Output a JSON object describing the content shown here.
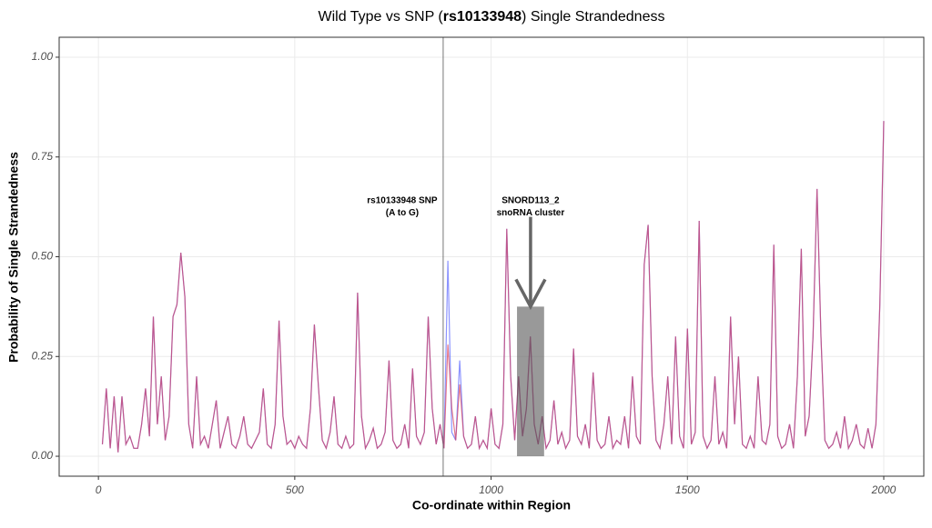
{
  "chart_data": {
    "type": "line",
    "title": [
      "Wild Type vs SNP (",
      "rs10133948",
      ") Single Strandedness"
    ],
    "xlabel": "Co-ordinate within Region",
    "ylabel": "Probability of Single Strandedness",
    "x": [
      10,
      20,
      30,
      40,
      50,
      60,
      70,
      80,
      90,
      100,
      110,
      120,
      130,
      140,
      150,
      160,
      170,
      180,
      190,
      200,
      210,
      220,
      230,
      240,
      250,
      260,
      270,
      280,
      290,
      300,
      310,
      320,
      330,
      340,
      350,
      360,
      370,
      380,
      390,
      400,
      410,
      420,
      430,
      440,
      450,
      460,
      470,
      480,
      490,
      500,
      510,
      520,
      530,
      540,
      550,
      560,
      570,
      580,
      590,
      600,
      610,
      620,
      630,
      640,
      650,
      660,
      670,
      680,
      690,
      700,
      710,
      720,
      730,
      740,
      750,
      760,
      770,
      780,
      790,
      800,
      810,
      820,
      830,
      840,
      850,
      860,
      870,
      880,
      890,
      900,
      910,
      920,
      930,
      940,
      950,
      960,
      970,
      980,
      990,
      1000,
      1010,
      1020,
      1030,
      1040,
      1050,
      1060,
      1070,
      1080,
      1090,
      1100,
      1110,
      1120,
      1130,
      1140,
      1150,
      1160,
      1170,
      1180,
      1190,
      1200,
      1210,
      1220,
      1230,
      1240,
      1250,
      1260,
      1270,
      1280,
      1290,
      1300,
      1310,
      1320,
      1330,
      1340,
      1350,
      1360,
      1370,
      1380,
      1390,
      1400,
      1410,
      1420,
      1430,
      1440,
      1450,
      1460,
      1470,
      1480,
      1490,
      1500,
      1510,
      1520,
      1530,
      1540,
      1550,
      1560,
      1570,
      1580,
      1590,
      1600,
      1610,
      1620,
      1630,
      1640,
      1650,
      1660,
      1670,
      1680,
      1690,
      1700,
      1710,
      1720,
      1730,
      1740,
      1750,
      1760,
      1770,
      1780,
      1790,
      1800,
      1810,
      1820,
      1830,
      1840,
      1850,
      1860,
      1870,
      1880,
      1890,
      1900,
      1910,
      1920,
      1930,
      1940,
      1950,
      1960,
      1970,
      1980,
      1990,
      2000
    ],
    "series": [
      {
        "color": "#4f5bff",
        "values": [
          0.03,
          0.17,
          0.02,
          0.15,
          0.01,
          0.15,
          0.03,
          0.05,
          0.02,
          0.02,
          0.08,
          0.17,
          0.05,
          0.35,
          0.08,
          0.2,
          0.04,
          0.1,
          0.35,
          0.38,
          0.51,
          0.4,
          0.08,
          0.02,
          0.2,
          0.03,
          0.05,
          0.02,
          0.08,
          0.14,
          0.02,
          0.06,
          0.1,
          0.03,
          0.02,
          0.05,
          0.1,
          0.03,
          0.02,
          0.04,
          0.06,
          0.17,
          0.03,
          0.02,
          0.08,
          0.34,
          0.1,
          0.03,
          0.04,
          0.02,
          0.05,
          0.03,
          0.02,
          0.12,
          0.33,
          0.18,
          0.04,
          0.02,
          0.06,
          0.15,
          0.03,
          0.02,
          0.05,
          0.02,
          0.03,
          0.41,
          0.1,
          0.02,
          0.04,
          0.07,
          0.02,
          0.03,
          0.06,
          0.24,
          0.04,
          0.02,
          0.03,
          0.08,
          0.02,
          0.22,
          0.05,
          0.03,
          0.06,
          0.35,
          0.12,
          0.03,
          0.08,
          0.02,
          0.49,
          0.06,
          0.04,
          0.24,
          0.05,
          0.02,
          0.03,
          0.1,
          0.02,
          0.04,
          0.02,
          0.12,
          0.03,
          0.02,
          0.08,
          0.57,
          0.2,
          0.04,
          0.2,
          0.05,
          0.12,
          0.3,
          0.08,
          0.03,
          0.1,
          0.02,
          0.04,
          0.14,
          0.03,
          0.06,
          0.02,
          0.04,
          0.27,
          0.05,
          0.03,
          0.08,
          0.02,
          0.21,
          0.04,
          0.02,
          0.03,
          0.1,
          0.02,
          0.04,
          0.03,
          0.1,
          0.02,
          0.2,
          0.05,
          0.03,
          0.48,
          0.58,
          0.2,
          0.04,
          0.02,
          0.08,
          0.2,
          0.03,
          0.3,
          0.05,
          0.02,
          0.32,
          0.03,
          0.06,
          0.59,
          0.05,
          0.02,
          0.04,
          0.2,
          0.03,
          0.06,
          0.02,
          0.35,
          0.08,
          0.25,
          0.03,
          0.02,
          0.05,
          0.02,
          0.2,
          0.04,
          0.03,
          0.08,
          0.53,
          0.05,
          0.02,
          0.03,
          0.08,
          0.02,
          0.2,
          0.52,
          0.05,
          0.1,
          0.3,
          0.67,
          0.3,
          0.04,
          0.02,
          0.03,
          0.06,
          0.02,
          0.1,
          0.02,
          0.04,
          0.08,
          0.03,
          0.02,
          0.07,
          0.02,
          0.08,
          0.38,
          0.84
        ]
      },
      {
        "color": "#d8344f",
        "values": [
          0.03,
          0.17,
          0.02,
          0.15,
          0.01,
          0.15,
          0.03,
          0.05,
          0.02,
          0.02,
          0.08,
          0.17,
          0.05,
          0.35,
          0.08,
          0.2,
          0.04,
          0.1,
          0.35,
          0.38,
          0.51,
          0.4,
          0.08,
          0.02,
          0.2,
          0.03,
          0.05,
          0.02,
          0.08,
          0.14,
          0.02,
          0.06,
          0.1,
          0.03,
          0.02,
          0.05,
          0.1,
          0.03,
          0.02,
          0.04,
          0.06,
          0.17,
          0.03,
          0.02,
          0.08,
          0.34,
          0.1,
          0.03,
          0.04,
          0.02,
          0.05,
          0.03,
          0.02,
          0.12,
          0.33,
          0.18,
          0.04,
          0.02,
          0.06,
          0.15,
          0.03,
          0.02,
          0.05,
          0.02,
          0.03,
          0.41,
          0.1,
          0.02,
          0.04,
          0.07,
          0.02,
          0.03,
          0.06,
          0.24,
          0.04,
          0.02,
          0.03,
          0.08,
          0.02,
          0.22,
          0.05,
          0.03,
          0.06,
          0.35,
          0.12,
          0.03,
          0.08,
          0.02,
          0.28,
          0.12,
          0.04,
          0.18,
          0.05,
          0.02,
          0.03,
          0.1,
          0.02,
          0.04,
          0.02,
          0.12,
          0.03,
          0.02,
          0.08,
          0.57,
          0.2,
          0.04,
          0.2,
          0.05,
          0.12,
          0.3,
          0.08,
          0.03,
          0.1,
          0.02,
          0.04,
          0.14,
          0.03,
          0.06,
          0.02,
          0.04,
          0.27,
          0.05,
          0.03,
          0.08,
          0.02,
          0.21,
          0.04,
          0.02,
          0.03,
          0.1,
          0.02,
          0.04,
          0.03,
          0.1,
          0.02,
          0.2,
          0.05,
          0.03,
          0.48,
          0.58,
          0.2,
          0.04,
          0.02,
          0.08,
          0.2,
          0.03,
          0.3,
          0.05,
          0.02,
          0.32,
          0.03,
          0.06,
          0.59,
          0.05,
          0.02,
          0.04,
          0.2,
          0.03,
          0.06,
          0.02,
          0.35,
          0.08,
          0.25,
          0.03,
          0.02,
          0.05,
          0.02,
          0.2,
          0.04,
          0.03,
          0.08,
          0.53,
          0.05,
          0.02,
          0.03,
          0.08,
          0.02,
          0.2,
          0.52,
          0.05,
          0.1,
          0.3,
          0.67,
          0.3,
          0.04,
          0.02,
          0.03,
          0.06,
          0.02,
          0.1,
          0.02,
          0.04,
          0.08,
          0.03,
          0.02,
          0.07,
          0.02,
          0.08,
          0.38,
          0.84
        ]
      }
    ],
    "xlim": [
      -100,
      2102
    ],
    "ylim": [
      -0.05,
      1.05
    ],
    "xticks": [
      0,
      500,
      1000,
      1500,
      2000
    ],
    "yticks": [
      {
        "value": 0,
        "label": "0.00"
      },
      {
        "value": 0.25,
        "label": "0.25"
      },
      {
        "value": 0.5,
        "label": "0.50"
      },
      {
        "value": 0.75,
        "label": "0.75"
      },
      {
        "value": 1,
        "label": "1.00"
      }
    ],
    "grid": true,
    "snp_line": {
      "x": 878,
      "label": [
        "rs10133948 SNP",
        "(A to G)"
      ]
    },
    "highlight": {
      "x": [
        1066,
        1135
      ],
      "y": [
        0,
        0.375
      ],
      "label": [
        "SNORD113_2",
        "snoRNA cluster"
      ],
      "arrow_from": 0.6
    }
  }
}
